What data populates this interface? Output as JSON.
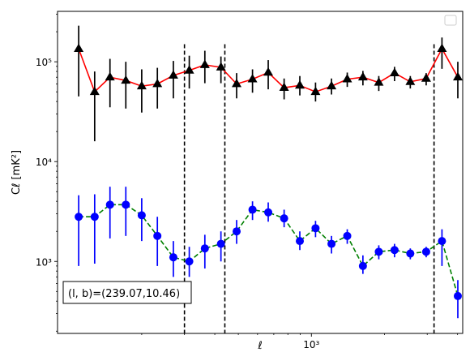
{
  "chart_data": {
    "type": "scatter",
    "xscale": "log",
    "yscale": "log",
    "xlim": [
      90,
      4200
    ],
    "ylim": [
      190,
      320000
    ],
    "xlabel": "ℓ",
    "ylabel": "Cℓ  [mK²]",
    "xtick_major": [
      1000
    ],
    "xtick_major_labels": [
      "10³"
    ],
    "ytick_major": [
      1000,
      10000,
      100000
    ],
    "ytick_major_labels": [
      "10³",
      "10⁴",
      "10⁵"
    ],
    "annotation": "(l, b)=(239.07,10.46)",
    "legend": {
      "location": "top-right",
      "entries": [
        ""
      ]
    },
    "vlines": [
      300,
      440,
      3200
    ],
    "grid": false,
    "series": [
      {
        "color": "#ff0000",
        "marker": "triangle",
        "marker_color": "#000000",
        "errorbar_color": "#000000",
        "linestyle": "solid",
        "x": [
          110,
          128,
          148,
          172,
          200,
          232,
          270,
          314,
          364,
          424,
          492,
          572,
          664,
          772,
          896,
          1040,
          1210,
          1405,
          1630,
          1895,
          2200,
          2555,
          2970,
          3450,
          4010
        ],
        "y": [
          135000,
          50000,
          70000,
          65000,
          57000,
          60000,
          73000,
          82000,
          93000,
          88000,
          60000,
          67000,
          78000,
          55000,
          58000,
          50000,
          57000,
          67000,
          70000,
          62000,
          77000,
          63000,
          68000,
          135000,
          70000
        ],
        "yerr_low": [
          90000,
          34000,
          35000,
          31000,
          26000,
          26000,
          30000,
          28000,
          32000,
          27000,
          17000,
          18000,
          25000,
          13000,
          12000,
          10000,
          10000,
          11000,
          12000,
          11000,
          13000,
          9000,
          10000,
          50000,
          27000
        ],
        "yerr_high": [
          95000,
          30000,
          37000,
          35000,
          27000,
          27000,
          29000,
          33000,
          36000,
          25000,
          17000,
          17000,
          26000,
          13000,
          14000,
          12000,
          11000,
          11000,
          11000,
          10000,
          12000,
          9000,
          9000,
          40000,
          30000
        ]
      },
      {
        "color": "#008000",
        "marker": "circle",
        "marker_color": "#0000ff",
        "errorbar_color": "#0000ff",
        "linestyle": "dashed",
        "x": [
          110,
          128,
          148,
          172,
          200,
          232,
          270,
          314,
          364,
          424,
          492,
          572,
          664,
          772,
          896,
          1040,
          1210,
          1405,
          1630,
          1895,
          2200,
          2555,
          2970,
          3450,
          4010
        ],
        "y": [
          2800,
          2800,
          3700,
          3700,
          2900,
          1800,
          1100,
          1000,
          1350,
          1500,
          2000,
          3300,
          3100,
          2700,
          1600,
          2150,
          1500,
          1800,
          900,
          1250,
          1300,
          1200,
          1250,
          1600,
          450
        ],
        "yerr_low": [
          1900,
          1850,
          2000,
          1900,
          1300,
          900,
          400,
          300,
          500,
          500,
          500,
          700,
          600,
          500,
          300,
          400,
          300,
          300,
          150,
          200,
          200,
          150,
          150,
          700,
          180
        ],
        "yerr_high": [
          1800,
          1900,
          1900,
          1900,
          1400,
          1000,
          500,
          400,
          500,
          500,
          600,
          700,
          800,
          600,
          400,
          400,
          300,
          300,
          250,
          200,
          200,
          150,
          150,
          500,
          200
        ]
      }
    ]
  }
}
